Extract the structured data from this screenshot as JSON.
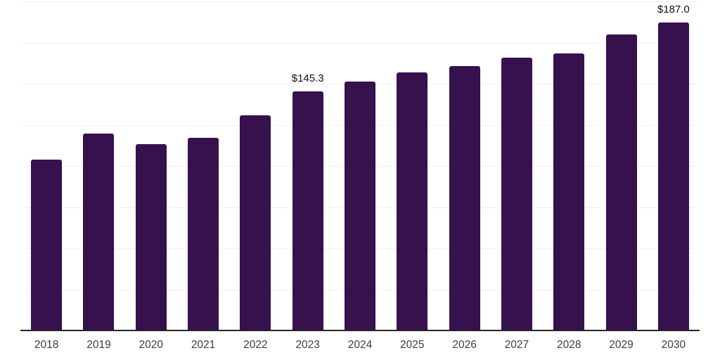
{
  "chart_data": {
    "type": "bar",
    "title": "",
    "xlabel": "",
    "ylabel": "",
    "categories": [
      "2018",
      "2019",
      "2020",
      "2021",
      "2022",
      "2023",
      "2024",
      "2025",
      "2026",
      "2027",
      "2028",
      "2029",
      "2030"
    ],
    "values": [
      104.0,
      119.8,
      113.4,
      117.3,
      130.8,
      145.3,
      151.3,
      157.0,
      160.8,
      165.8,
      168.5,
      180.0,
      187.0
    ],
    "data_labels": {
      "2023": "$145.3",
      "2030": "$187.0"
    },
    "ylim": [
      0,
      200
    ],
    "gridline_interval": 25,
    "grid": "horizontal-only",
    "legend": "none",
    "colors": {
      "bar": "#36114e",
      "gridline": "#f0f0f0",
      "axis_line": "#262626",
      "tick_label": "#3d3d3d",
      "data_label": "#111111",
      "background": "#ffffff"
    }
  }
}
